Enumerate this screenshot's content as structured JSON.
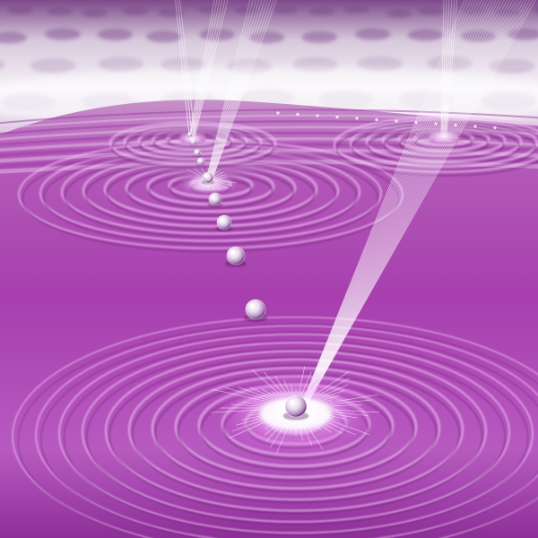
{
  "image": {
    "kind": "3d-render",
    "subject": "light-beams-striking-rippling-liquid",
    "palette": {
      "sky_light": "#f3eef6",
      "sky_mid": "#c9b4d2",
      "sky_dark": "#8a5c95",
      "liquid_light": "#e6a6ea",
      "liquid_mid": "#b752bd",
      "liquid_dark": "#5b1866",
      "glow": "#ffffff",
      "glow_tint": "#f7c8ff"
    }
  }
}
